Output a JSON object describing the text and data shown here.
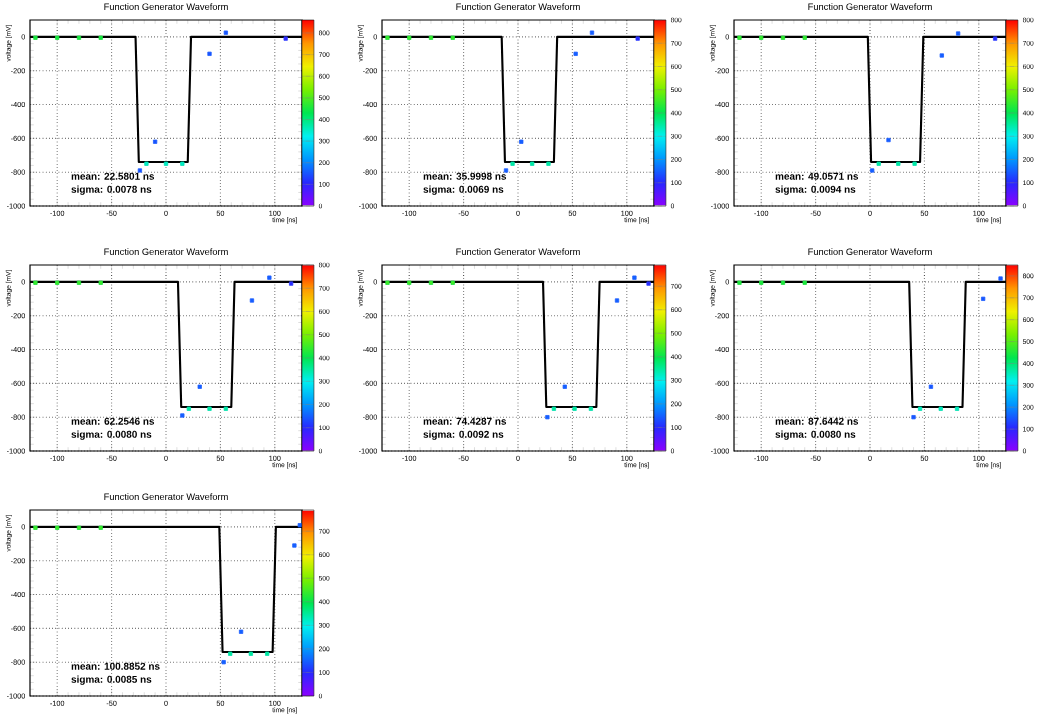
{
  "chart_data": [
    {
      "type": "line",
      "title": "Function Generator Waveform",
      "xlabel": "time [ns]",
      "ylabel": "voltage [mV]",
      "xlim": [
        -125,
        125
      ],
      "ylim": [
        -1000,
        100
      ],
      "xticks": [
        -100,
        -50,
        0,
        50,
        100
      ],
      "yticks": [
        -1000,
        -800,
        -600,
        -400,
        -200,
        0
      ],
      "grid": true,
      "clim": [
        0,
        860
      ],
      "cticks": [
        0,
        100,
        200,
        300,
        400,
        500,
        600,
        700,
        800
      ],
      "annotations": [
        "mean: 22.5801 ns",
        "sigma: 0.0078 ns"
      ],
      "series": [
        {
          "type": "scatter",
          "marker": "square",
          "x": [
            -120,
            -100,
            -80,
            -60,
            -24,
            -10,
            -18,
            0,
            15,
            40,
            55,
            110
          ],
          "values": [
            -5,
            -5,
            -5,
            -5,
            -790,
            -620,
            -750,
            -750,
            -750,
            -100,
            25,
            -10
          ],
          "cvalues": [
            450,
            450,
            450,
            450,
            150,
            150,
            350,
            350,
            350,
            150,
            150,
            100
          ],
          "colors": [
            "#20e040",
            "#20e040",
            "#20e040",
            "#20e040",
            "#2060ff",
            "#2060ff",
            "#00e0b0",
            "#00e0b0",
            "#00e0b0",
            "#2060ff",
            "#2060ff",
            "#3040ff"
          ]
        },
        {
          "type": "line",
          "color": "#000000",
          "x": [
            -125,
            -28,
            -25,
            20,
            23,
            125
          ],
          "values": [
            0,
            0,
            -740,
            -740,
            0,
            0
          ]
        }
      ]
    },
    {
      "type": "line",
      "title": "Function Generator Waveform",
      "xlabel": "time [ns]",
      "ylabel": "voltage [mV]",
      "xlim": [
        -125,
        125
      ],
      "ylim": [
        -1000,
        100
      ],
      "xticks": [
        -100,
        -50,
        0,
        50,
        100
      ],
      "yticks": [
        -1000,
        -800,
        -600,
        -400,
        -200,
        0
      ],
      "grid": true,
      "clim": [
        0,
        800
      ],
      "cticks": [
        0,
        100,
        200,
        300,
        400,
        500,
        600,
        700,
        800
      ],
      "annotations": [
        "mean: 35.9998 ns",
        "sigma: 0.0069 ns"
      ],
      "series": [
        {
          "type": "scatter",
          "marker": "square",
          "x": [
            -120,
            -100,
            -80,
            -60,
            -11,
            3,
            -5,
            13,
            28,
            53,
            68,
            110
          ],
          "values": [
            -5,
            -5,
            -5,
            -5,
            -790,
            -620,
            -750,
            -750,
            -750,
            -100,
            25,
            -10
          ],
          "cvalues": [
            450,
            450,
            450,
            450,
            150,
            150,
            350,
            350,
            350,
            150,
            150,
            100
          ],
          "colors": [
            "#20e040",
            "#20e040",
            "#20e040",
            "#20e040",
            "#2060ff",
            "#2060ff",
            "#00e0b0",
            "#00e0b0",
            "#00e0b0",
            "#2060ff",
            "#2060ff",
            "#3040ff"
          ]
        },
        {
          "type": "line",
          "color": "#000000",
          "x": [
            -125,
            -15,
            -12,
            33,
            36,
            125
          ],
          "values": [
            0,
            0,
            -740,
            -740,
            0,
            0
          ]
        }
      ]
    },
    {
      "type": "line",
      "title": "Function Generator Waveform",
      "xlabel": "time [ns]",
      "ylabel": "voltage [mV]",
      "xlim": [
        -125,
        125
      ],
      "ylim": [
        -1000,
        100
      ],
      "xticks": [
        -100,
        -50,
        0,
        50,
        100
      ],
      "yticks": [
        -1000,
        -800,
        -600,
        -400,
        -200,
        0
      ],
      "grid": true,
      "clim": [
        0,
        800
      ],
      "cticks": [
        0,
        100,
        200,
        300,
        400,
        500,
        600,
        700,
        800
      ],
      "annotations": [
        "mean: 49.0571 ns",
        "sigma: 0.0094 ns"
      ],
      "series": [
        {
          "type": "scatter",
          "marker": "square",
          "x": [
            -120,
            -100,
            -80,
            -60,
            2,
            17,
            8,
            26,
            41,
            66,
            81,
            115
          ],
          "values": [
            -5,
            -5,
            -5,
            -5,
            -790,
            -610,
            -750,
            -750,
            -750,
            -110,
            20,
            -10
          ],
          "cvalues": [
            450,
            450,
            450,
            450,
            150,
            150,
            350,
            350,
            350,
            150,
            150,
            100
          ],
          "colors": [
            "#20e040",
            "#20e040",
            "#20e040",
            "#20e040",
            "#2060ff",
            "#2060ff",
            "#00e0b0",
            "#00e0b0",
            "#00e0b0",
            "#2060ff",
            "#2060ff",
            "#3040ff"
          ]
        },
        {
          "type": "line",
          "color": "#000000",
          "x": [
            -125,
            -2,
            1,
            46,
            49,
            125
          ],
          "values": [
            0,
            0,
            -740,
            -740,
            0,
            0
          ]
        }
      ]
    },
    {
      "type": "line",
      "title": "Function Generator Waveform",
      "xlabel": "time [ns]",
      "ylabel": "voltage [mV]",
      "xlim": [
        -125,
        125
      ],
      "ylim": [
        -1000,
        100
      ],
      "xticks": [
        -100,
        -50,
        0,
        50,
        100
      ],
      "yticks": [
        -1000,
        -800,
        -600,
        -400,
        -200,
        0
      ],
      "grid": true,
      "clim": [
        0,
        800
      ],
      "cticks": [
        0,
        100,
        200,
        300,
        400,
        500,
        600,
        700,
        800
      ],
      "annotations": [
        "mean: 62.2546 ns",
        "sigma: 0.0080 ns"
      ],
      "series": [
        {
          "type": "scatter",
          "marker": "square",
          "x": [
            -120,
            -100,
            -80,
            -60,
            15,
            31,
            21,
            40,
            55,
            79,
            95,
            115
          ],
          "values": [
            -5,
            -5,
            -5,
            -5,
            -790,
            -620,
            -750,
            -750,
            -750,
            -110,
            25,
            -10
          ],
          "cvalues": [
            450,
            450,
            450,
            450,
            150,
            150,
            350,
            350,
            350,
            150,
            150,
            100
          ],
          "colors": [
            "#20e040",
            "#20e040",
            "#20e040",
            "#20e040",
            "#2060ff",
            "#2060ff",
            "#00e0b0",
            "#00e0b0",
            "#00e0b0",
            "#2060ff",
            "#2060ff",
            "#3040ff"
          ]
        },
        {
          "type": "line",
          "color": "#000000",
          "x": [
            -125,
            11,
            14,
            60,
            63,
            125
          ],
          "values": [
            0,
            0,
            -740,
            -740,
            0,
            0
          ]
        }
      ]
    },
    {
      "type": "line",
      "title": "Function Generator Waveform",
      "xlabel": "time [ns]",
      "ylabel": "voltage [mV]",
      "xlim": [
        -125,
        125
      ],
      "ylim": [
        -1000,
        100
      ],
      "xticks": [
        -100,
        -50,
        0,
        50,
        100
      ],
      "yticks": [
        -1000,
        -800,
        -600,
        -400,
        -200,
        0
      ],
      "grid": true,
      "clim": [
        0,
        790
      ],
      "cticks": [
        0,
        100,
        200,
        300,
        400,
        500,
        600,
        700
      ],
      "annotations": [
        "mean: 74.4287 ns",
        "sigma: 0.0092 ns"
      ],
      "series": [
        {
          "type": "scatter",
          "marker": "square",
          "x": [
            -120,
            -100,
            -80,
            -60,
            27,
            43,
            33,
            52,
            67,
            91,
            107,
            120
          ],
          "values": [
            -5,
            -5,
            -5,
            -5,
            -800,
            -620,
            -750,
            -750,
            -750,
            -110,
            25,
            -10
          ],
          "cvalues": [
            450,
            450,
            450,
            450,
            150,
            150,
            350,
            350,
            350,
            150,
            150,
            100
          ],
          "colors": [
            "#20e040",
            "#20e040",
            "#20e040",
            "#20e040",
            "#2060ff",
            "#2060ff",
            "#00e0b0",
            "#00e0b0",
            "#00e0b0",
            "#2060ff",
            "#2060ff",
            "#3040ff"
          ]
        },
        {
          "type": "line",
          "color": "#000000",
          "x": [
            -125,
            23,
            26,
            72,
            75,
            125
          ],
          "values": [
            0,
            0,
            -740,
            -740,
            0,
            0
          ]
        }
      ]
    },
    {
      "type": "line",
      "title": "Function Generator Waveform",
      "xlabel": "time [ns]",
      "ylabel": "voltage [mV]",
      "xlim": [
        -125,
        125
      ],
      "ylim": [
        -1000,
        100
      ],
      "xticks": [
        -100,
        -50,
        0,
        50,
        100
      ],
      "yticks": [
        -1000,
        -800,
        -600,
        -400,
        -200,
        0
      ],
      "grid": true,
      "clim": [
        0,
        850
      ],
      "cticks": [
        0,
        100,
        200,
        300,
        400,
        500,
        600,
        700,
        800
      ],
      "annotations": [
        "mean: 87.6442 ns",
        "sigma: 0.0080 ns"
      ],
      "series": [
        {
          "type": "scatter",
          "marker": "square",
          "x": [
            -120,
            -100,
            -80,
            -60,
            40,
            56,
            46,
            65,
            80,
            104,
            120
          ],
          "values": [
            -5,
            -5,
            -5,
            -5,
            -800,
            -620,
            -750,
            -750,
            -750,
            -100,
            20
          ],
          "cvalues": [
            450,
            450,
            450,
            450,
            150,
            150,
            350,
            350,
            350,
            150,
            150
          ],
          "colors": [
            "#20e040",
            "#20e040",
            "#20e040",
            "#20e040",
            "#2060ff",
            "#2060ff",
            "#00e0b0",
            "#00e0b0",
            "#00e0b0",
            "#2060ff",
            "#2060ff"
          ]
        },
        {
          "type": "line",
          "color": "#000000",
          "x": [
            -125,
            36,
            39,
            85,
            88,
            125
          ],
          "values": [
            0,
            0,
            -740,
            -740,
            0,
            0
          ]
        }
      ]
    },
    {
      "type": "line",
      "title": "Function Generator Waveform",
      "xlabel": "time [ns]",
      "ylabel": "voltage [mV]",
      "xlim": [
        -125,
        125
      ],
      "ylim": [
        -1000,
        100
      ],
      "xticks": [
        -100,
        -50,
        0,
        50,
        100
      ],
      "yticks": [
        -1000,
        -800,
        -600,
        -400,
        -200,
        0
      ],
      "grid": true,
      "clim": [
        0,
        790
      ],
      "cticks": [
        0,
        100,
        200,
        300,
        400,
        500,
        600,
        700
      ],
      "annotations": [
        "mean: 100.8852 ns",
        "sigma: 0.0085 ns"
      ],
      "series": [
        {
          "type": "scatter",
          "marker": "square",
          "x": [
            -120,
            -100,
            -80,
            -60,
            53,
            69,
            59,
            78,
            93,
            118,
            123
          ],
          "values": [
            -5,
            -5,
            -5,
            -5,
            -800,
            -620,
            -750,
            -750,
            -750,
            -110,
            10
          ],
          "cvalues": [
            450,
            450,
            450,
            450,
            150,
            150,
            350,
            350,
            350,
            150,
            150
          ],
          "colors": [
            "#20e040",
            "#20e040",
            "#20e040",
            "#20e040",
            "#2060ff",
            "#2060ff",
            "#00e0b0",
            "#00e0b0",
            "#00e0b0",
            "#2060ff",
            "#2060ff"
          ]
        },
        {
          "type": "line",
          "color": "#000000",
          "x": [
            -125,
            49,
            52,
            98,
            101,
            125
          ],
          "values": [
            0,
            0,
            -740,
            -740,
            0,
            0
          ]
        }
      ]
    }
  ]
}
